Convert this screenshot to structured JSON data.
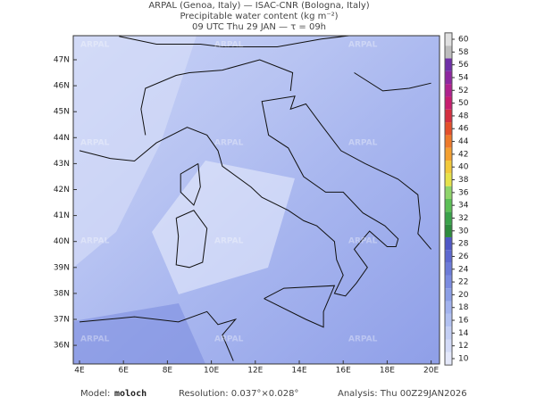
{
  "header": {
    "lines": [
      "ARPAL (Genoa, Italy)  —  ISAC-CNR (Bologna, Italy)",
      "Precipitable water content (kg m⁻²)",
      "09 UTC Thu 29 JAN  —  τ = 09h"
    ]
  },
  "map": {
    "watermark": "ARPAL",
    "lat_labels": [
      "47N",
      "46N",
      "45N",
      "44N",
      "43N",
      "42N",
      "41N",
      "40N",
      "39N",
      "38N",
      "37N",
      "36N"
    ],
    "lon_labels": [
      "4E",
      "6E",
      "8E",
      "10E",
      "12E",
      "14E",
      "16E",
      "18E",
      "20E"
    ]
  },
  "colorbar": {
    "ticks": [
      10,
      12,
      14,
      16,
      18,
      20,
      22,
      24,
      26,
      28,
      30,
      32,
      34,
      36,
      38,
      40,
      42,
      44,
      46,
      48,
      50,
      52,
      54,
      56,
      58,
      60
    ],
    "colors": [
      "#e4e8fa",
      "#d4dbf7",
      "#c4cff4",
      "#b2c1f1",
      "#a2b3ee",
      "#8c9fe6",
      "#7b8ce0",
      "#6c7bd8",
      "#5e69d0",
      "#4f58c6",
      "#2e8b3e",
      "#3aa24a",
      "#5cbf55",
      "#8fd46a",
      "#e6e24a",
      "#f2c93a",
      "#f4a030",
      "#ee7a2a",
      "#e4502a",
      "#d43040",
      "#c81e70",
      "#b0228e",
      "#8e28a0",
      "#7030a8",
      "#bdbdbd",
      "#e0e0e0"
    ]
  },
  "footer": {
    "model_label": "Model:",
    "model": "moloch",
    "resolution": "Resolution: 0.037°×0.028°",
    "analysis": "Analysis: Thu 00Z29JAN2026"
  }
}
